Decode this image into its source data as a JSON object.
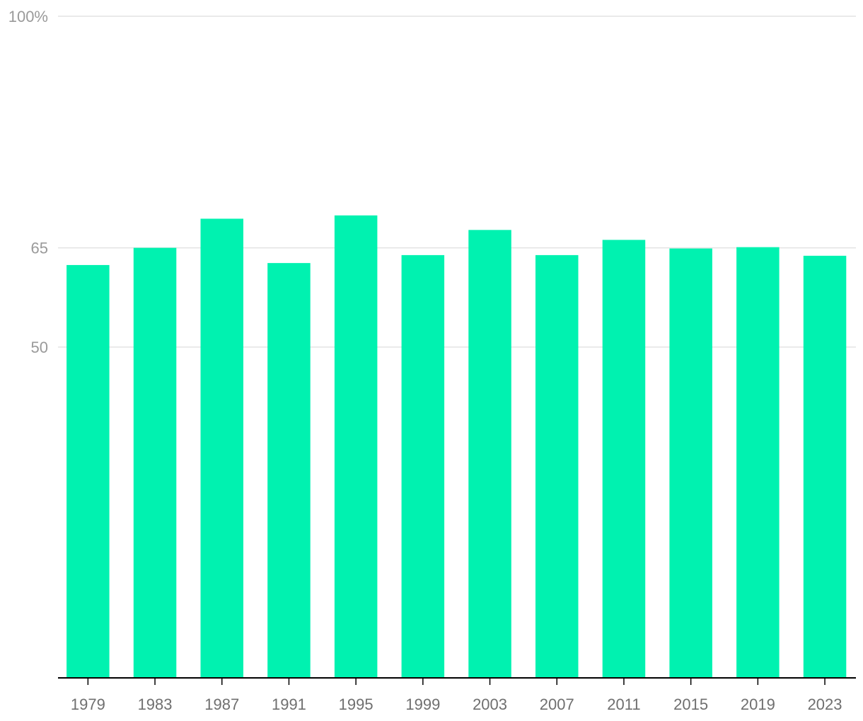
{
  "chart_data": {
    "type": "bar",
    "categories": [
      "1979",
      "1983",
      "1987",
      "1991",
      "1995",
      "1999",
      "2003",
      "2007",
      "2011",
      "2015",
      "2019",
      "2023"
    ],
    "values": [
      62.4,
      65.0,
      69.4,
      62.7,
      69.9,
      63.9,
      67.7,
      63.9,
      66.2,
      64.9,
      65.1,
      63.8
    ],
    "ylim": [
      0,
      100
    ],
    "y_ticks": [
      {
        "value": 100,
        "label": "100%"
      },
      {
        "value": 65,
        "label": "65"
      },
      {
        "value": 50,
        "label": "50"
      }
    ],
    "title": "",
    "xlabel": "",
    "ylabel": "",
    "grid": true,
    "colors": {
      "bar": "#00f2b0",
      "grid": "#e3e3e3",
      "axis": "#000000"
    }
  }
}
